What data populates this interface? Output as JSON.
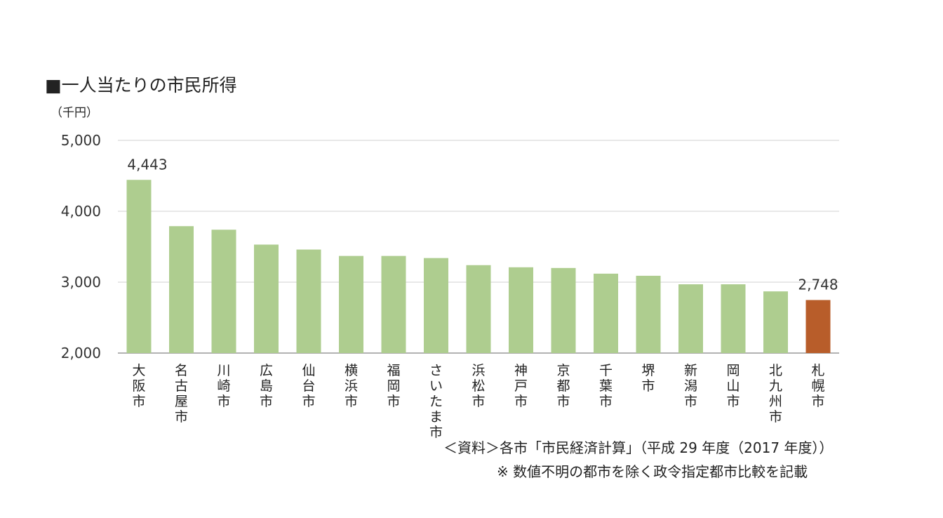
{
  "chart_data": {
    "type": "bar",
    "title": "■一人当たりの市民所得",
    "ylabel": "（千円）",
    "ylim": [
      2000,
      5000
    ],
    "yticks": [
      "2,000",
      "3,000",
      "4,000",
      "5,000"
    ],
    "grid": true,
    "categories": [
      "大阪市",
      "名古屋市",
      "川崎市",
      "広島市",
      "仙台市",
      "横浜市",
      "福岡市",
      "さいたま市",
      "浜松市",
      "神戸市",
      "京都市",
      "千葉市",
      "堺市",
      "新潟市",
      "岡山市",
      "北九州市",
      "札幌市"
    ],
    "values": [
      4443,
      3790,
      3740,
      3530,
      3460,
      3370,
      3370,
      3340,
      3240,
      3210,
      3200,
      3120,
      3090,
      2970,
      2970,
      2870,
      2748
    ],
    "data_labels": {
      "0": "4,443",
      "16": "2,748"
    },
    "colors": {
      "default": "#aecd8f",
      "highlight": "#b85d2a"
    },
    "highlight_index": 16
  },
  "notes": {
    "source": "＜資料＞各市「市民経済計算」（平成 29 年度（2017 年度））",
    "exclusion": "※ 数値不明の都市を除く政令指定都市比較を記載"
  }
}
